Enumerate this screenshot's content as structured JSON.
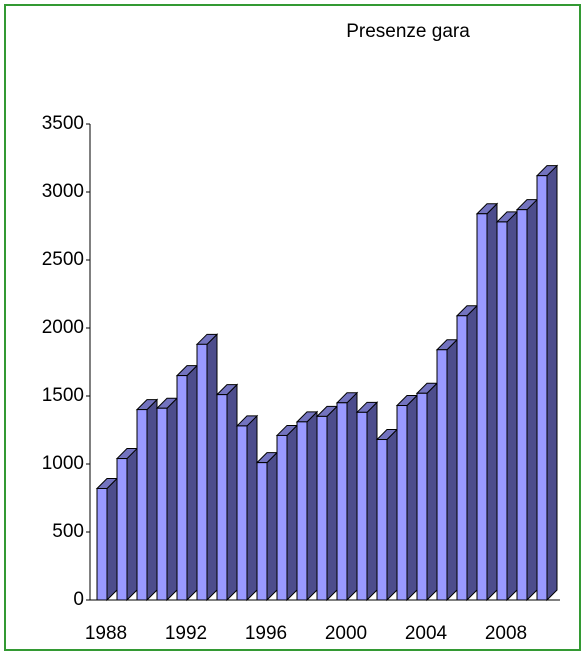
{
  "chart_data": {
    "type": "bar3d",
    "title": "Presenze gara",
    "categories": [
      "1988",
      null,
      null,
      null,
      "1992",
      null,
      null,
      null,
      "1996",
      null,
      null,
      null,
      "2000",
      null,
      null,
      null,
      "2004",
      null,
      null,
      null,
      "2008",
      null,
      null
    ],
    "values": [
      820,
      1040,
      1400,
      1410,
      1650,
      1880,
      1510,
      1280,
      1010,
      1210,
      1310,
      1350,
      1450,
      1380,
      1180,
      1430,
      1520,
      1840,
      2090,
      2840,
      2780,
      2870,
      3120
    ],
    "color": "#9999ff",
    "ylim": [
      0,
      3500
    ],
    "yticks": [
      0,
      500,
      1000,
      1500,
      2000,
      2500,
      3000,
      3500
    ]
  }
}
